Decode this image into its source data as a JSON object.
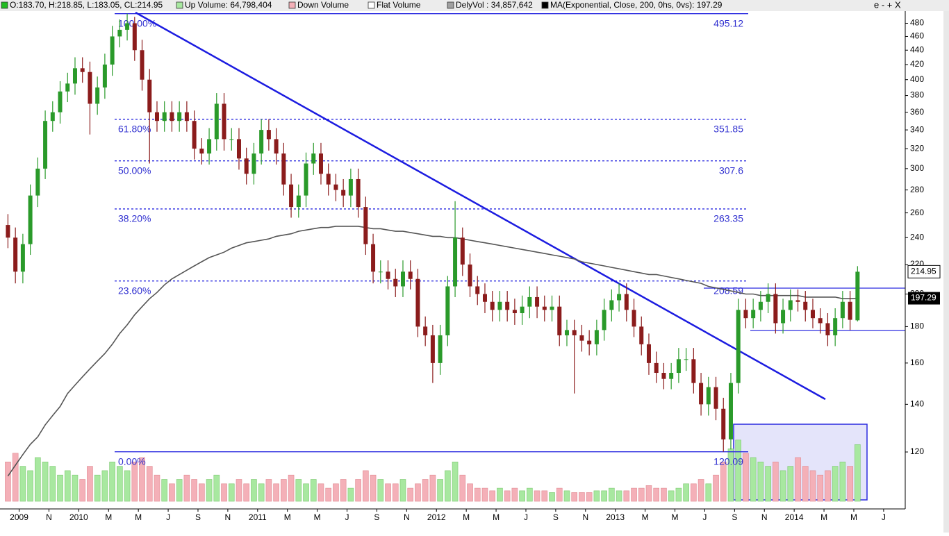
{
  "header": {
    "items": [
      {
        "text": "O:183.70, H:218.85, L:183.05, CL:214.95",
        "color": "#22bb22"
      },
      {
        "text": "Up Volume: 64,798,404",
        "color": "#a8e8a0"
      },
      {
        "text": "Down Volume",
        "color": "#f4b0b8"
      },
      {
        "text": "Flat Volume",
        "color": "#ffffff"
      },
      {
        "text": "DelyVol : 34,857,642",
        "color": "#a0a0a0"
      },
      {
        "text": "MA(Exponential, Close, 200, 0hs, 0vs): 197.29",
        "color": "#000000"
      }
    ],
    "controls": "e - + X"
  },
  "chart_data": {
    "type": "candlestick",
    "log_y": true,
    "ylim": [
      100.5,
      497
    ],
    "yticks": [
      120,
      140,
      160,
      180,
      200,
      220,
      240,
      260,
      280,
      300,
      320,
      340,
      360,
      380,
      400,
      420,
      440,
      460,
      480
    ],
    "xlim": [
      -0.6,
      120.4
    ],
    "xticks": [
      {
        "value": 1.5,
        "label": "2009"
      },
      {
        "value": 5.5,
        "label": "N"
      },
      {
        "value": 9.5,
        "label": "2010"
      },
      {
        "value": 13.5,
        "label": "M"
      },
      {
        "value": 17.5,
        "label": "M"
      },
      {
        "value": 21.5,
        "label": "J"
      },
      {
        "value": 25.5,
        "label": "S"
      },
      {
        "value": 29.5,
        "label": "N"
      },
      {
        "value": 33.5,
        "label": "2011"
      },
      {
        "value": 37.5,
        "label": "M"
      },
      {
        "value": 41.5,
        "label": "M"
      },
      {
        "value": 45.5,
        "label": "J"
      },
      {
        "value": 49.5,
        "label": "S"
      },
      {
        "value": 53.5,
        "label": "N"
      },
      {
        "value": 57.5,
        "label": "2012"
      },
      {
        "value": 61.5,
        "label": "M"
      },
      {
        "value": 65.5,
        "label": "M"
      },
      {
        "value": 69.5,
        "label": "J"
      },
      {
        "value": 73.5,
        "label": "S"
      },
      {
        "value": 77.5,
        "label": "N"
      },
      {
        "value": 81.5,
        "label": "2013"
      },
      {
        "value": 85.5,
        "label": "M"
      },
      {
        "value": 89.5,
        "label": "M"
      },
      {
        "value": 93.5,
        "label": "J"
      },
      {
        "value": 97.5,
        "label": "S"
      },
      {
        "value": 101.5,
        "label": "N"
      },
      {
        "value": 105.5,
        "label": "2014"
      },
      {
        "value": 109.5,
        "label": "M"
      },
      {
        "value": 113.5,
        "label": "M"
      },
      {
        "value": 117.5,
        "label": "J"
      }
    ],
    "up_color": "#2a9a2a",
    "down_color": "#8b1c1c",
    "open": [
      250,
      240,
      215,
      235,
      275,
      300,
      350,
      360,
      385,
      395,
      415,
      410,
      370,
      390,
      420,
      460,
      470,
      480,
      440,
      400,
      360,
      350,
      360,
      350,
      360,
      350,
      320,
      315,
      330,
      370,
      330,
      330,
      310,
      295,
      315,
      340,
      330,
      315,
      285,
      265,
      275,
      305,
      315,
      295,
      285,
      280,
      275,
      290,
      265,
      235,
      215,
      215,
      210,
      205,
      215,
      210,
      180,
      175,
      160,
      175,
      205,
      240,
      220,
      205,
      200,
      195,
      190,
      195,
      190,
      188,
      192,
      198,
      192,
      190,
      192,
      175,
      178,
      175,
      172,
      170,
      178,
      190,
      196,
      200,
      190,
      180,
      170,
      160,
      155,
      152,
      155,
      162,
      162,
      150,
      140,
      148,
      138,
      125,
      150,
      190,
      185,
      190,
      195,
      200,
      182,
      190,
      196,
      195,
      190,
      185,
      182,
      175,
      185,
      195,
      183.7
    ],
    "high": [
      259,
      248,
      243,
      285,
      311,
      362,
      373,
      398,
      409,
      430,
      430,
      424,
      404,
      435,
      476,
      486,
      495.12,
      490,
      455,
      414,
      373,
      373,
      373,
      373,
      373,
      362,
      331,
      342,
      383,
      383,
      342,
      342,
      321,
      326,
      352,
      352,
      342,
      326,
      295,
      285,
      316,
      326,
      326,
      305,
      295,
      290,
      300,
      300,
      274,
      243,
      223,
      223,
      217,
      223,
      223,
      217,
      186,
      181,
      181,
      212,
      270,
      248,
      228,
      212,
      207,
      202,
      202,
      202,
      197,
      199,
      205,
      205,
      199,
      199,
      199,
      184,
      184,
      181,
      178,
      184,
      197,
      203,
      207,
      207,
      197,
      186,
      176,
      166,
      160,
      160,
      168,
      168,
      168,
      155,
      153,
      153,
      143,
      155,
      197,
      197,
      197,
      202,
      207,
      207,
      197,
      203,
      203,
      202,
      197,
      191,
      188,
      191,
      202,
      202,
      218.85
    ],
    "low": [
      232,
      207,
      207,
      227,
      265,
      290,
      338,
      347,
      372,
      381,
      396,
      335,
      357,
      376,
      405,
      444,
      454,
      425,
      386,
      305,
      338,
      338,
      338,
      338,
      338,
      309,
      304,
      304,
      318,
      318,
      318,
      299,
      285,
      285,
      304,
      318,
      304,
      275,
      256,
      256,
      265,
      294,
      285,
      275,
      270,
      265,
      265,
      256,
      227,
      207,
      207,
      203,
      198,
      198,
      203,
      174,
      169,
      150,
      154,
      169,
      198,
      212,
      198,
      193,
      188,
      183,
      183,
      183,
      181,
      181,
      185,
      185,
      183,
      183,
      169,
      169,
      145,
      166,
      164,
      164,
      172,
      183,
      189,
      183,
      174,
      164,
      154,
      150,
      147,
      147,
      150,
      156,
      145,
      135,
      135,
      133,
      120.09,
      121,
      145,
      179,
      179,
      183,
      188,
      176,
      176,
      183,
      189,
      183,
      179,
      176,
      169,
      169,
      179,
      178,
      183.05
    ],
    "close": [
      240,
      215,
      235,
      275,
      300,
      350,
      360,
      385,
      395,
      415,
      410,
      370,
      390,
      420,
      460,
      470,
      480,
      440,
      400,
      360,
      350,
      360,
      350,
      360,
      350,
      320,
      315,
      330,
      370,
      330,
      330,
      310,
      295,
      315,
      340,
      330,
      315,
      285,
      265,
      275,
      305,
      315,
      295,
      285,
      280,
      275,
      290,
      265,
      235,
      215,
      215,
      210,
      205,
      215,
      210,
      180,
      175,
      160,
      175,
      205,
      240,
      220,
      205,
      200,
      195,
      190,
      195,
      190,
      188,
      192,
      198,
      192,
      190,
      192,
      175,
      178,
      175,
      172,
      170,
      178,
      190,
      196,
      200,
      190,
      180,
      170,
      160,
      155,
      152,
      155,
      162,
      162,
      150,
      140,
      148,
      138,
      125,
      150,
      190,
      185,
      190,
      195,
      200,
      182,
      190,
      196,
      195,
      190,
      185,
      182,
      175,
      185,
      195,
      184,
      214.95
    ],
    "ma": [
      111,
      115,
      119,
      123,
      126,
      131,
      135,
      139,
      145,
      149,
      153,
      157,
      161,
      165,
      170,
      176,
      181,
      187,
      192,
      197,
      201,
      206,
      210,
      213,
      216,
      219,
      222,
      225,
      227,
      229,
      232,
      234,
      236,
      237,
      238,
      239,
      241,
      242,
      243,
      245,
      246,
      247,
      248,
      248,
      249,
      249,
      249,
      249,
      248,
      247,
      247,
      246,
      245,
      245,
      244,
      243,
      242,
      241,
      241,
      240,
      240,
      239,
      238,
      237,
      236,
      235,
      234,
      233,
      232,
      231,
      230,
      229,
      228,
      227,
      226,
      225,
      224,
      222,
      221,
      220,
      219,
      218,
      217,
      216,
      215,
      214,
      213,
      213,
      212,
      211,
      210,
      209,
      208,
      207,
      205,
      204,
      203,
      202,
      201,
      200,
      200,
      199,
      199,
      199,
      199,
      199,
      199,
      198,
      198,
      198,
      198,
      198,
      197,
      197,
      197.29
    ],
    "ma_color": "#555555",
    "volume_lim": [
      0,
      73
    ],
    "volume": [
      45,
      55,
      40,
      35,
      50,
      45,
      40,
      30,
      35,
      30,
      25,
      40,
      30,
      35,
      45,
      40,
      35,
      45,
      50,
      40,
      30,
      25,
      20,
      25,
      30,
      25,
      20,
      25,
      30,
      20,
      20,
      25,
      20,
      25,
      20,
      25,
      20,
      25,
      30,
      25,
      20,
      25,
      20,
      15,
      20,
      25,
      15,
      25,
      35,
      30,
      25,
      20,
      20,
      25,
      15,
      20,
      25,
      30,
      25,
      35,
      45,
      30,
      20,
      15,
      15,
      12,
      15,
      12,
      15,
      12,
      15,
      12,
      12,
      10,
      15,
      12,
      10,
      10,
      10,
      12,
      12,
      15,
      12,
      12,
      15,
      15,
      18,
      15,
      15,
      12,
      15,
      20,
      20,
      25,
      20,
      30,
      45,
      60,
      70,
      55,
      50,
      45,
      40,
      45,
      35,
      40,
      50,
      40,
      35,
      30,
      35,
      40,
      45,
      40,
      64.8
    ],
    "volume_up_color": "#a8e8a0",
    "volume_down_color": "#f4b0b8",
    "fib_levels": [
      {
        "label": "100.00%",
        "value": 495.12
      },
      {
        "label": "61.80%",
        "value": 351.85
      },
      {
        "label": "50.00%",
        "value": 307.6
      },
      {
        "label": "38.20%",
        "value": 263.35
      },
      {
        "label": "23.60%",
        "value": 208.59
      },
      {
        "label": "0.00%",
        "value": 120.09
      }
    ],
    "fib_color": "#2a2ae0"
  }
}
